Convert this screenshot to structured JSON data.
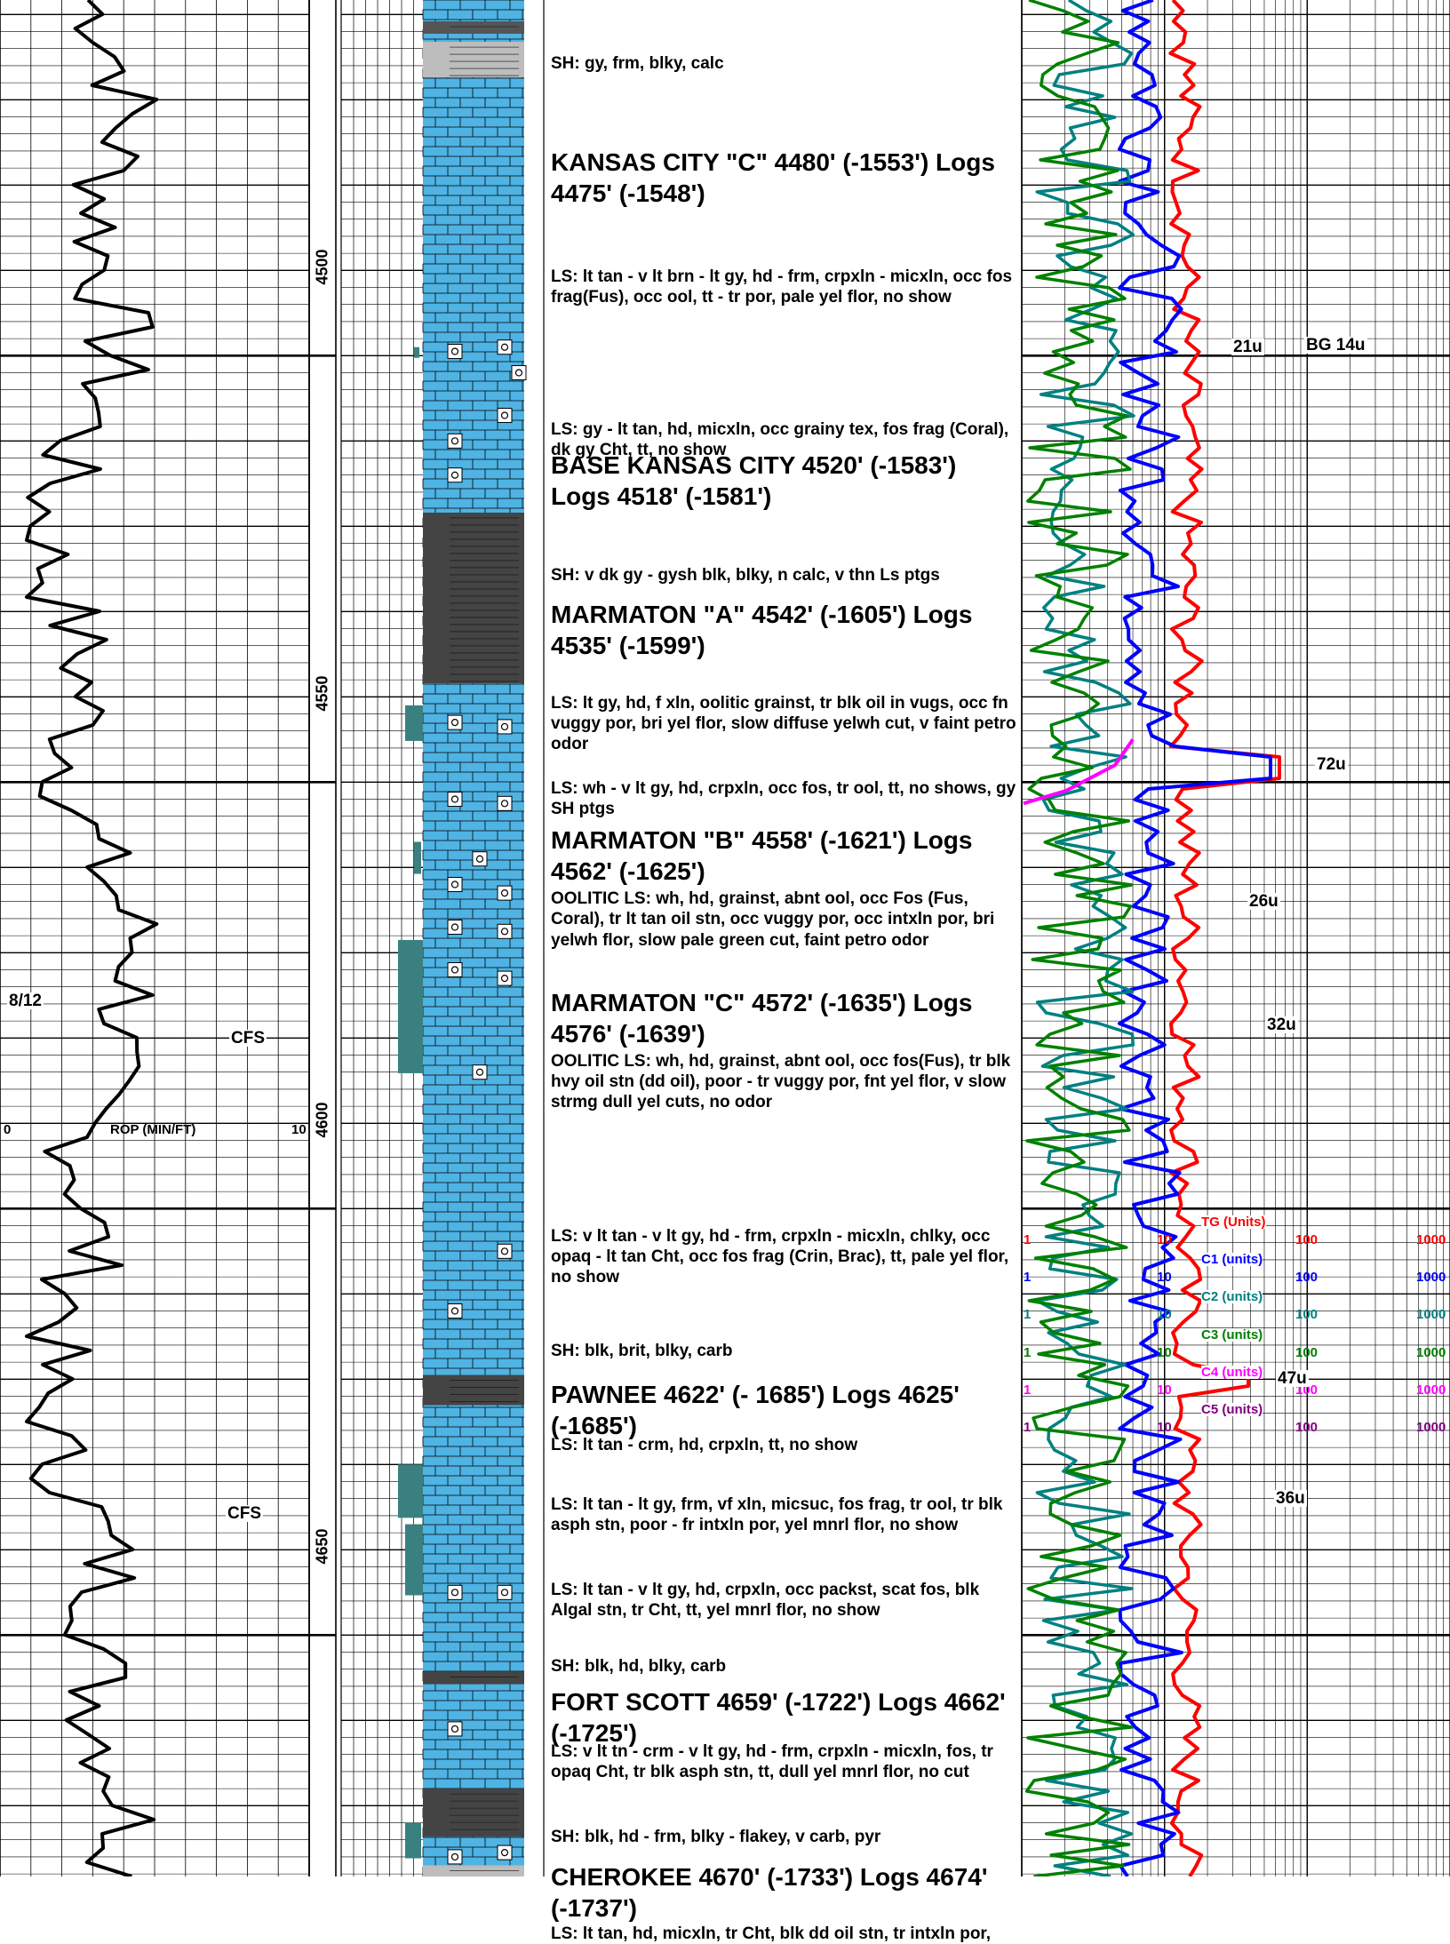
{
  "rop_track": {
    "scale_min": "0",
    "scale_max": "10",
    "scale_label": "ROP (MIN/FT)",
    "labels": [
      {
        "text": "8/12",
        "depth": 4586
      },
      {
        "text": "CFS",
        "depth": 4588
      },
      {
        "text": "CFS",
        "depth": 4642
      }
    ]
  },
  "depth_track": {
    "markers": [
      {
        "label": "4500",
        "depth": 4500
      },
      {
        "label": "4550",
        "depth": 4550
      },
      {
        "label": "4600",
        "depth": 4600
      },
      {
        "label": "4650",
        "depth": 4650
      }
    ]
  },
  "descriptions": [
    {
      "text": "SH: gy, frm, blky, calc",
      "size": "small",
      "depth": 4464.5
    },
    {
      "text": "KANSAS CITY \"C\" 4480' (-1553') Logs 4475' (-1548')",
      "size": "big",
      "depth": 4475.5
    },
    {
      "text": "LS: lt tan - v lt brn - lt gy, hd - frm, crpxln - micxln, occ fos frag(Fus), occ ool, tt - tr por, pale yel flor, no show",
      "size": "small",
      "depth": 4489.5
    },
    {
      "text": "LS: gy - lt tan, hd, micxln, occ grainy tex, fos frag (Coral), dk gy Cht, tt, no show",
      "size": "small",
      "depth": 4507.5
    },
    {
      "text": "BASE KANSAS CITY  4520' (-1583') Logs 4518' (-1581')",
      "size": "big",
      "depth": 4511
    },
    {
      "text": "SH: v dk gy - gysh blk, blky, n calc, v thn Ls ptgs",
      "size": "small",
      "depth": 4524.5
    },
    {
      "text": "MARMATON \"A\" 4542' (-1605') Logs 4535' (-1599')",
      "size": "big",
      "depth": 4528.5
    },
    {
      "text": "LS: lt gy, hd, f xln, oolitic grainst, tr blk oil in vugs, occ fn vuggy por, bri yel flor, slow diffuse yelwh cut, v faint petro odor",
      "size": "small",
      "depth": 4539.5
    },
    {
      "text": "LS: wh - v lt gy, hd, crpxln, occ fos, tr ool, tt, no shows, gy SH ptgs",
      "size": "small",
      "depth": 4549.5
    },
    {
      "text": "MARMATON \"B\" 4558' (-1621') Logs 4562' (-1625')",
      "size": "big",
      "depth": 4555
    },
    {
      "text": "OOLITIC LS: wh, hd, grainst, abnt ool, occ Fos (Fus, Coral), tr lt tan oil stn, occ vuggy por, occ intxln por, bri yelwh flor, slow pale green cut, faint petro odor",
      "size": "small",
      "depth": 4562.5
    },
    {
      "text": "MARMATON \"C\" 4572' (-1635') Logs 4576' (-1639')",
      "size": "big",
      "depth": 4574
    },
    {
      "text": "OOLITIC LS: wh, hd, grainst, abnt ool, occ fos(Fus), tr blk hvy oil stn (dd oil), poor - tr vuggy por, fnt yel flor, v slow strmg dull yel cuts, no odor",
      "size": "small",
      "depth": 4581.5
    },
    {
      "text": "LS: v lt tan - v lt gy, hd - frm, crpxln - micxln, chlky, occ opaq -  lt tan Cht, occ fos frag (Crin, Brac), tt, pale yel flor, no show",
      "size": "small",
      "depth": 4602
    },
    {
      "text": "SH: blk, brit, blky, carb",
      "size": "small",
      "depth": 4615.5
    },
    {
      "text": "PAWNEE 4622' (- 1685') Logs 4625' (-1685')",
      "size": "big",
      "depth": 4620
    },
    {
      "text": "LS: lt tan - crm, hd, crpxln, tt, no show",
      "size": "small",
      "depth": 4626.5
    },
    {
      "text": "LS: lt tan - lt gy, frm, vf xln, micsuc, fos frag, tr ool, tr blk asph stn, poor - fr intxln por, yel mnrl flor, no show",
      "size": "small",
      "depth": 4633.5
    },
    {
      "text": "LS: lt tan - v lt gy, hd, crpxln, occ packst, scat fos,  blk Algal stn, tr Cht,  tt, yel mnrl flor, no show",
      "size": "small",
      "depth": 4643.5
    },
    {
      "text": "SH: blk, hd, blky, carb",
      "size": "small",
      "depth": 4652.5
    },
    {
      "text": "FORT SCOTT 4659' (-1722') Logs 4662' (-1725')",
      "size": "big",
      "depth": 4656
    },
    {
      "text": "LS: v lt tn - crm - v lt gy, hd - frm, crpxln - micxln, fos, tr opaq Cht, tr blk asph stn, tt, dull yel mnrl flor, no cut",
      "size": "small",
      "depth": 4662.5
    },
    {
      "text": "SH: blk, hd - frm, blky - flakey, v carb, pyr",
      "size": "small",
      "depth": 4672.5
    },
    {
      "text": "CHEROKEE 4670' (-1733') Logs 4674' (-1737')",
      "size": "big",
      "depth": 4676.5
    },
    {
      "text": "LS: lt tan, hd, micxln, tr Cht, blk dd oil stn, tr intxln por,",
      "size": "small",
      "depth": 4683.8
    }
  ],
  "gas_track": {
    "curves": [
      {
        "label": "TG (Units)",
        "color": "#ff0000",
        "scale": [
          "1",
          "10",
          "100",
          "1000"
        ],
        "depth": 4600.8
      },
      {
        "label": "C1 (units)",
        "color": "#0000ff",
        "scale": [
          "1",
          "10",
          "100",
          "1000"
        ],
        "depth": 4605.2
      },
      {
        "label": "C2 (units)",
        "color": "#008080",
        "scale": [
          "1",
          "10",
          "100",
          "1000"
        ],
        "depth": 4609.6
      },
      {
        "label": "C3 (units)",
        "color": "#008000",
        "scale": [
          "1",
          "10",
          "100",
          "1000"
        ],
        "depth": 4614
      },
      {
        "label": "C4 (units)",
        "color": "#ff00ff",
        "scale": [
          "1",
          "10",
          "100",
          "1000"
        ],
        "depth": 4618.4
      },
      {
        "label": "C5 (units)",
        "color": "#800080",
        "scale": [
          "1",
          "10",
          "100",
          "1000"
        ],
        "depth": 4622.8
      }
    ],
    "annotations": [
      {
        "text": "21u",
        "depth": 4499
      },
      {
        "text": "BG 14u",
        "depth": 4498.8
      },
      {
        "text": "72u",
        "depth": 4548
      },
      {
        "text": "26u",
        "depth": 4564
      },
      {
        "text": "32u",
        "depth": 4578.5
      },
      {
        "text": "47u",
        "depth": 4620
      },
      {
        "text": "36u",
        "depth": 4634
      }
    ],
    "tg_peak_units": 72
  }
}
